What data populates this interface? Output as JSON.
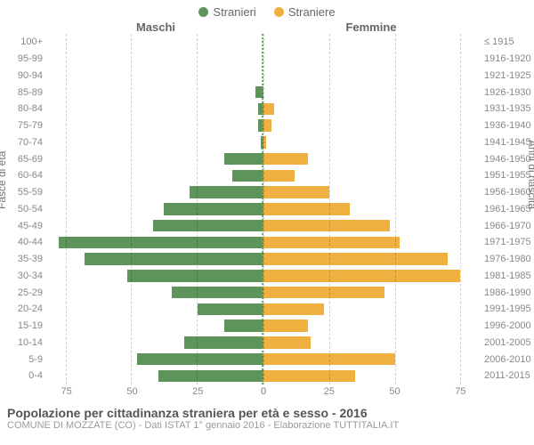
{
  "chart": {
    "type": "population-pyramid",
    "background_color": "#ffffff",
    "grid_color": "#cccccc",
    "centerline_color": "#4a8a4a",
    "text_color": "#888888",
    "legend": [
      {
        "label": "Stranieri",
        "color": "#5e9459"
      },
      {
        "label": "Straniere",
        "color": "#f0b040"
      }
    ],
    "column_titles": {
      "left": "Maschi",
      "right": "Femmine"
    },
    "y_axis_left": {
      "label": "Fasce di età",
      "categories": [
        "100+",
        "95-99",
        "90-94",
        "85-89",
        "80-84",
        "75-79",
        "70-74",
        "65-69",
        "60-64",
        "55-59",
        "50-54",
        "45-49",
        "40-44",
        "35-39",
        "30-34",
        "25-29",
        "20-24",
        "15-19",
        "10-14",
        "5-9",
        "0-4"
      ]
    },
    "y_axis_right": {
      "label": "Anni di nascita",
      "categories": [
        "≤ 1915",
        "1916-1920",
        "1921-1925",
        "1926-1930",
        "1931-1935",
        "1936-1940",
        "1941-1945",
        "1946-1950",
        "1951-1955",
        "1956-1960",
        "1961-1965",
        "1966-1970",
        "1971-1975",
        "1976-1980",
        "1981-1985",
        "1986-1990",
        "1991-1995",
        "1996-2000",
        "2001-2005",
        "2006-2010",
        "2011-2015"
      ]
    },
    "x_axis": {
      "max": 82,
      "ticks": [
        0,
        25,
        50,
        75
      ],
      "left_labels": [
        "0",
        "25",
        "50",
        "75"
      ],
      "right_labels": [
        "0",
        "25",
        "50",
        "75"
      ]
    },
    "series": {
      "male": {
        "color": "#5e9459",
        "values": [
          0,
          0,
          0,
          3,
          2,
          2,
          1,
          15,
          12,
          28,
          38,
          42,
          78,
          68,
          52,
          35,
          25,
          15,
          30,
          48,
          40
        ]
      },
      "female": {
        "color": "#f0b040",
        "values": [
          0,
          0,
          0,
          0,
          4,
          3,
          1,
          17,
          12,
          25,
          33,
          48,
          52,
          70,
          75,
          46,
          23,
          17,
          18,
          50,
          35
        ]
      }
    },
    "footer": {
      "title": "Popolazione per cittadinanza straniera per età e sesso - 2016",
      "subtitle": "COMUNE DI MOZZATE (CO) - Dati ISTAT 1° gennaio 2016 - Elaborazione TUTTITALIA.IT"
    },
    "title_fontsize": 14,
    "label_fontsize": 11,
    "bar_height_ratio": 0.72
  }
}
